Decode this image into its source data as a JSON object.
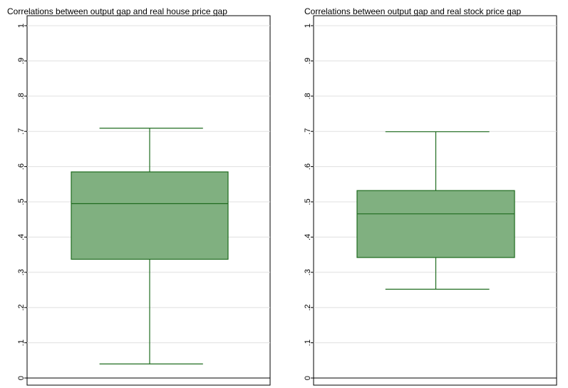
{
  "chart_data": [
    {
      "type": "box",
      "title": "Correlations between output gap and real house price gap",
      "ylim": [
        0,
        1
      ],
      "yticks": [
        "0",
        ".1",
        ".2",
        ".3",
        ".4",
        ".5",
        ".6",
        ".7",
        ".8",
        ".9",
        "1"
      ],
      "grid": true,
      "box": {
        "min": 0.04,
        "q1": 0.337,
        "median": 0.495,
        "q3": 0.585,
        "max": 0.709
      },
      "color": "#80b080",
      "line_color": "#1e6b1e"
    },
    {
      "type": "box",
      "title": "Correlations between output gap and real stock price gap",
      "ylim": [
        0,
        1
      ],
      "yticks": [
        "0",
        ".1",
        ".2",
        ".3",
        ".4",
        ".5",
        ".6",
        ".7",
        ".8",
        ".9",
        "1"
      ],
      "grid": true,
      "box": {
        "min": 0.252,
        "q1": 0.342,
        "median": 0.466,
        "q3": 0.532,
        "max": 0.699
      },
      "color": "#80b080",
      "line_color": "#1e6b1e"
    }
  ]
}
